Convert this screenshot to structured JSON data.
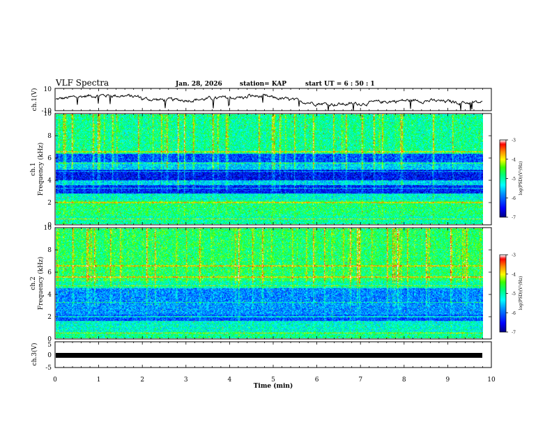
{
  "header": {
    "title": "VLF Spectra",
    "date": "Jan. 28, 2026",
    "station": "station= KAP",
    "start": "start  UT =  6 : 50 : 1"
  },
  "chart_data": [
    {
      "type": "line",
      "name": "ch1-waveform",
      "ylabel": "ch.1(V)",
      "ylim": [
        -10,
        10
      ],
      "y_ticks": [
        "10",
        "-10"
      ],
      "xlim": [
        0,
        10
      ]
    },
    {
      "type": "heatmap",
      "name": "ch1-spectrogram",
      "ylabel": "ch.1",
      "ylabel2": "Frequency  (kHz)",
      "ylim": [
        0,
        10
      ],
      "y_ticks": [
        "0",
        "2",
        "4",
        "6",
        "8",
        "10"
      ],
      "xlim": [
        0,
        9.85
      ],
      "colorbar": {
        "label": "log(PSD)(V²/Hz)",
        "range": [
          -7,
          -3
        ],
        "ticks": [
          "-3",
          "-4",
          "-5",
          "-6",
          "-7"
        ]
      },
      "note": "broadband noise spectrogram with dark blue bands near 3-5 kHz and 6 kHz, vertical red sferic streaks"
    },
    {
      "type": "heatmap",
      "name": "ch2-spectrogram",
      "ylabel": "ch.2",
      "ylabel2": "Frequency  (kHz)",
      "ylim": [
        0,
        10
      ],
      "y_ticks": [
        "0",
        "2",
        "4",
        "6",
        "8",
        "10"
      ],
      "xlim": [
        0,
        9.85
      ],
      "colorbar": {
        "label": "log(PSD)(V²/Hz)",
        "range": [
          -7,
          -3
        ],
        "ticks": [
          "-3",
          "-4",
          "-5",
          "-6",
          "-7"
        ]
      },
      "note": "broadband noise spectrogram with blue bands near 2-5 kHz, vertical red sferic streaks above 5 kHz"
    },
    {
      "type": "line",
      "name": "ch3-waveform",
      "ylabel": "ch.3(V)",
      "ylim": [
        -5,
        5
      ],
      "y_ticks": [
        "5",
        "0",
        "-5"
      ],
      "level": 0,
      "xlim": [
        0,
        9.85
      ]
    }
  ],
  "xaxis": {
    "label": "Time  (min)",
    "ticks": [
      "0",
      "1",
      "2",
      "3",
      "4",
      "5",
      "6",
      "7",
      "8",
      "9",
      "10"
    ],
    "range": [
      0,
      10
    ]
  },
  "colors": {
    "scale": [
      "#000080",
      "#0000ff",
      "#0080ff",
      "#00ffff",
      "#00ff80",
      "#00ff00",
      "#ffff00",
      "#ff8000",
      "#ff0000",
      "#ffffff"
    ]
  }
}
